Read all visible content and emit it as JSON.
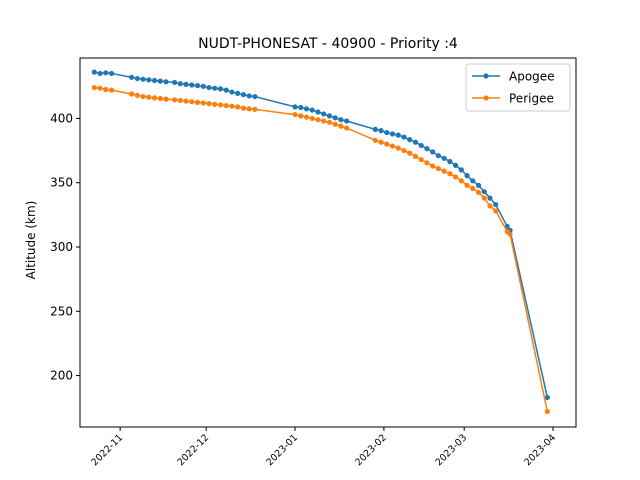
{
  "chart_data": {
    "type": "line",
    "title": "NUDT-PHONESAT - 40900 - Priority :4",
    "xlabel": "",
    "ylabel": "Altitude (km)",
    "xlim": [
      "2022-10-18",
      "2023-04-09"
    ],
    "ylim": [
      160,
      447
    ],
    "x_ticks": [
      "2022-11",
      "2022-12",
      "2023-01",
      "2023-02",
      "2023-03",
      "2023-04"
    ],
    "y_ticks": [
      200,
      250,
      300,
      350,
      400
    ],
    "legend_position": "top-right",
    "grid": false,
    "series": [
      {
        "name": "Apogee",
        "color": "#1f77b4",
        "points": [
          [
            "2022-10-23",
            436
          ],
          [
            "2022-10-25",
            435
          ],
          [
            "2022-10-27",
            435.5
          ],
          [
            "2022-10-29",
            435
          ],
          [
            "2022-11-05",
            432
          ],
          [
            "2022-11-07",
            431
          ],
          [
            "2022-11-09",
            430.5
          ],
          [
            "2022-11-11",
            430
          ],
          [
            "2022-11-13",
            429.5
          ],
          [
            "2022-11-15",
            429
          ],
          [
            "2022-11-17",
            428.5
          ],
          [
            "2022-11-20",
            428
          ],
          [
            "2022-11-22",
            427
          ],
          [
            "2022-11-24",
            426.5
          ],
          [
            "2022-11-26",
            426
          ],
          [
            "2022-11-28",
            425.5
          ],
          [
            "2022-11-30",
            425
          ],
          [
            "2022-12-02",
            424
          ],
          [
            "2022-12-04",
            423.5
          ],
          [
            "2022-12-06",
            423
          ],
          [
            "2022-12-08",
            422
          ],
          [
            "2022-12-10",
            420.5
          ],
          [
            "2022-12-12",
            419.5
          ],
          [
            "2022-12-14",
            418.5
          ],
          [
            "2022-12-16",
            417.5
          ],
          [
            "2022-12-18",
            417
          ],
          [
            "2023-01-01",
            409
          ],
          [
            "2023-01-03",
            408.5
          ],
          [
            "2023-01-05",
            407.5
          ],
          [
            "2023-01-07",
            406.5
          ],
          [
            "2023-01-09",
            405
          ],
          [
            "2023-01-11",
            403.5
          ],
          [
            "2023-01-13",
            402
          ],
          [
            "2023-01-15",
            400.5
          ],
          [
            "2023-01-17",
            399
          ],
          [
            "2023-01-19",
            398
          ],
          [
            "2023-01-29",
            391.5
          ],
          [
            "2023-01-31",
            390.5
          ],
          [
            "2023-02-02",
            389
          ],
          [
            "2023-02-04",
            388
          ],
          [
            "2023-02-06",
            387
          ],
          [
            "2023-02-08",
            385.5
          ],
          [
            "2023-02-10",
            383.5
          ],
          [
            "2023-02-12",
            381.5
          ],
          [
            "2023-02-14",
            379
          ],
          [
            "2023-02-16",
            376.5
          ],
          [
            "2023-02-18",
            374
          ],
          [
            "2023-02-20",
            371
          ],
          [
            "2023-02-22",
            369
          ],
          [
            "2023-02-24",
            366.5
          ],
          [
            "2023-02-26",
            363.5
          ],
          [
            "2023-02-28",
            360
          ],
          [
            "2023-03-02",
            355.5
          ],
          [
            "2023-03-04",
            351.5
          ],
          [
            "2023-03-06",
            348
          ],
          [
            "2023-03-08",
            343
          ],
          [
            "2023-03-10",
            338
          ],
          [
            "2023-03-12",
            333
          ],
          [
            "2023-03-16",
            316
          ],
          [
            "2023-03-17",
            313
          ],
          [
            "2023-03-30",
            183
          ]
        ]
      },
      {
        "name": "Perigee",
        "color": "#ff7f0e",
        "points": [
          [
            "2022-10-23",
            424
          ],
          [
            "2022-10-25",
            423.5
          ],
          [
            "2022-10-27",
            422.5
          ],
          [
            "2022-10-29",
            422
          ],
          [
            "2022-11-05",
            419
          ],
          [
            "2022-11-07",
            418
          ],
          [
            "2022-11-09",
            417
          ],
          [
            "2022-11-11",
            416.5
          ],
          [
            "2022-11-13",
            416
          ],
          [
            "2022-11-15",
            415.5
          ],
          [
            "2022-11-17",
            415
          ],
          [
            "2022-11-20",
            414.5
          ],
          [
            "2022-11-22",
            414
          ],
          [
            "2022-11-24",
            413.5
          ],
          [
            "2022-11-26",
            413
          ],
          [
            "2022-11-28",
            412.5
          ],
          [
            "2022-11-30",
            412
          ],
          [
            "2022-12-02",
            411.5
          ],
          [
            "2022-12-04",
            411
          ],
          [
            "2022-12-06",
            410.5
          ],
          [
            "2022-12-08",
            410
          ],
          [
            "2022-12-10",
            409.5
          ],
          [
            "2022-12-12",
            409
          ],
          [
            "2022-12-14",
            408
          ],
          [
            "2022-12-16",
            407.5
          ],
          [
            "2022-12-18",
            407
          ],
          [
            "2023-01-01",
            403
          ],
          [
            "2023-01-03",
            402
          ],
          [
            "2023-01-05",
            401
          ],
          [
            "2023-01-07",
            400
          ],
          [
            "2023-01-09",
            399
          ],
          [
            "2023-01-11",
            398
          ],
          [
            "2023-01-13",
            397
          ],
          [
            "2023-01-15",
            395.5
          ],
          [
            "2023-01-17",
            394
          ],
          [
            "2023-01-19",
            392.5
          ],
          [
            "2023-01-29",
            383
          ],
          [
            "2023-01-31",
            381.5
          ],
          [
            "2023-02-02",
            380
          ],
          [
            "2023-02-04",
            378.5
          ],
          [
            "2023-02-06",
            377
          ],
          [
            "2023-02-08",
            375
          ],
          [
            "2023-02-10",
            373
          ],
          [
            "2023-02-12",
            370.5
          ],
          [
            "2023-02-14",
            368
          ],
          [
            "2023-02-16",
            365.5
          ],
          [
            "2023-02-18",
            363
          ],
          [
            "2023-02-20",
            361
          ],
          [
            "2023-02-22",
            359
          ],
          [
            "2023-02-24",
            357
          ],
          [
            "2023-02-26",
            354.5
          ],
          [
            "2023-02-28",
            351.5
          ],
          [
            "2023-03-02",
            348
          ],
          [
            "2023-03-04",
            345.5
          ],
          [
            "2023-03-06",
            342.5
          ],
          [
            "2023-03-08",
            338
          ],
          [
            "2023-03-10",
            332
          ],
          [
            "2023-03-12",
            328
          ],
          [
            "2023-03-16",
            312
          ],
          [
            "2023-03-17",
            310
          ],
          [
            "2023-03-30",
            172
          ]
        ]
      }
    ]
  }
}
